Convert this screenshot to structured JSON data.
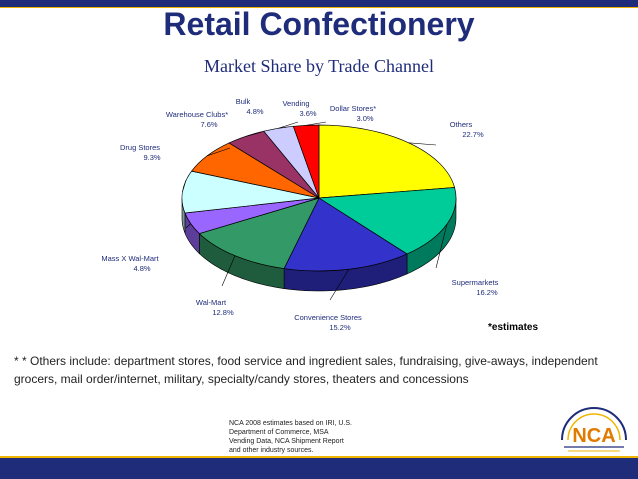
{
  "title": "Retail Confectionery",
  "subtitle": "Market Share by Trade Channel",
  "estimates_note": "*estimates",
  "footnote": "* * Others include: department stores, food service and ingredient sales, fundraising, give-aways, independent grocers, mail order/internet, military, specialty/candy stores, theaters and concessions",
  "source_lines": [
    "NCA 2008 estimates based on IRI, U.S.",
    "Department of Commerce, MSA",
    "Vending Data, NCA Shipment Report",
    "and other industry sources."
  ],
  "logo": {
    "name": "NCA",
    "text": "National Confectioners Association"
  },
  "colors": {
    "header_bar": "#1f2c7a",
    "accent_line": "#f0b400",
    "title_text": "#1f2c7a"
  },
  "chart_data": {
    "type": "pie",
    "title": "Retail Confectionery",
    "subtitle": "Market Share by Trade Channel",
    "unit": "%",
    "slices": [
      {
        "label": "Others",
        "label_text": "Others",
        "value": 22.7,
        "value_text": "22.7%",
        "color": "#ffff00"
      },
      {
        "label": "Supermarkets",
        "label_text": "Supermarkets",
        "value": 16.2,
        "value_text": "16.2%",
        "color": "#00cc99"
      },
      {
        "label": "Convenience Stores",
        "label_text": "Convenience Stores",
        "value": 15.2,
        "value_text": "15.2%",
        "color": "#3333cc"
      },
      {
        "label": "Wal-Mart",
        "label_text": "Wal-Mart",
        "value": 12.8,
        "value_text": "12.8%",
        "color": "#339966"
      },
      {
        "label": "Mass X Wal-Mart",
        "label_text": "Mass X Wal-Mart",
        "value": 4.8,
        "value_text": "4.8%",
        "color": "#9966ff"
      },
      {
        "label": "Drug Stores",
        "label_text": "Drug Stores",
        "value": 9.3,
        "value_text": "9.3%",
        "color": "#ccffff"
      },
      {
        "label": "Warehouse Clubs*",
        "label_text": "Warehouse Clubs*",
        "value": 7.6,
        "value_text": "7.6%",
        "color": "#ff6600"
      },
      {
        "label": "Bulk",
        "label_text": "Bulk",
        "value": 4.8,
        "value_text": "4.8%",
        "color": "#993366"
      },
      {
        "label": "Vending",
        "label_text": "Vending",
        "value": 3.6,
        "value_text": "3.6%",
        "color": "#ccccff"
      },
      {
        "label": "Dollar Stores*",
        "label_text": "Dollar Stores*",
        "value": 3.0,
        "value_text": "3.0%",
        "color": "#ff0000"
      }
    ],
    "start": "top, clockwise",
    "legend": "none",
    "style": "3D pie"
  }
}
